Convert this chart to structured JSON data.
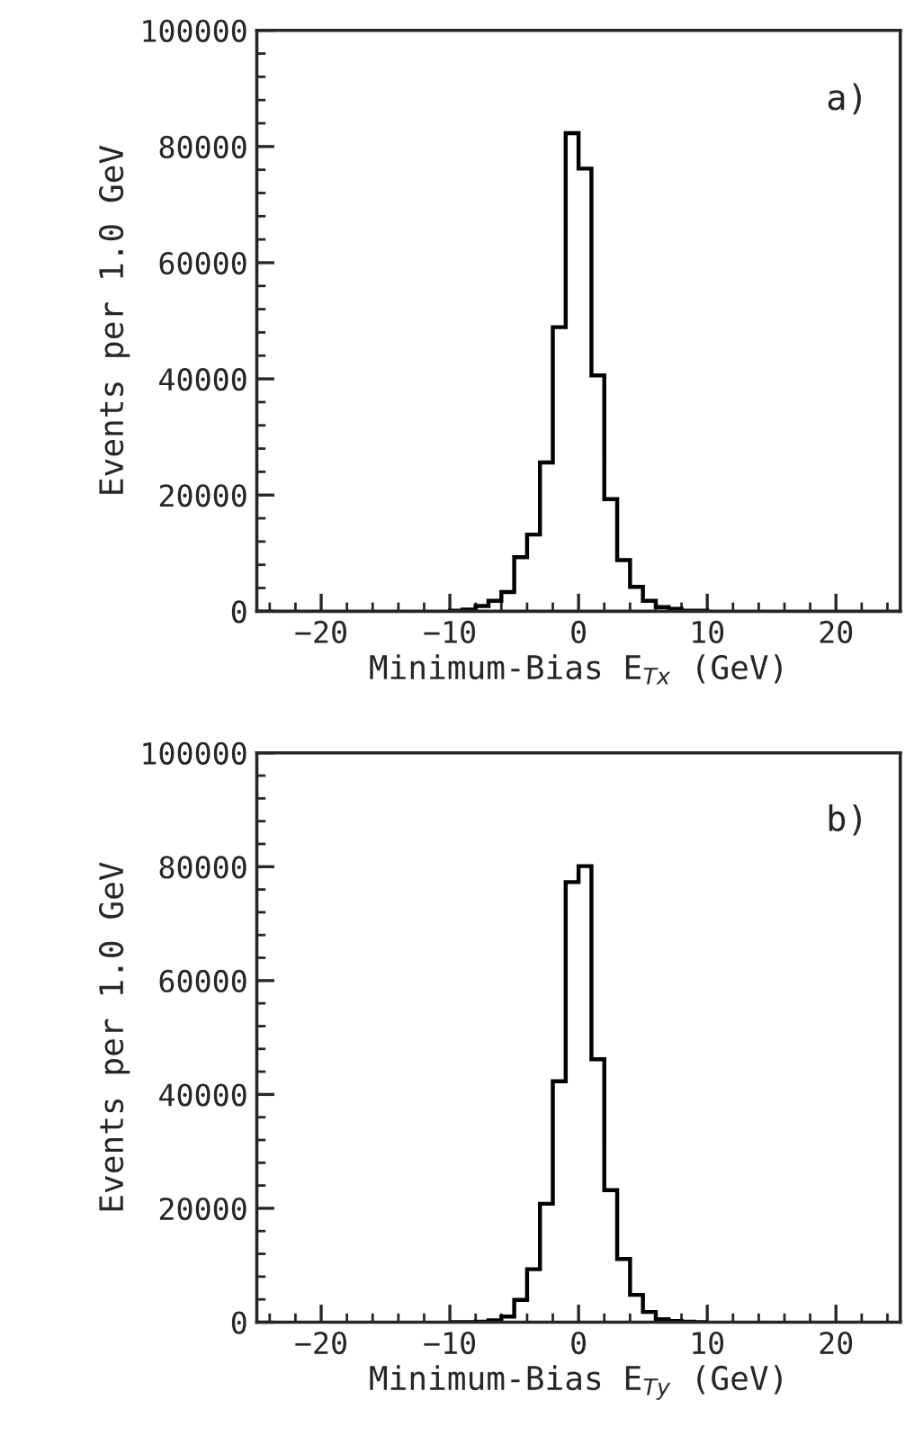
{
  "chart_data": [
    {
      "type": "histogram",
      "xlabel": "Minimum-Bias E$_{Tx}$ (GeV)",
      "ylabel": "Events per 1.0 GeV",
      "annotations": [
        "a)"
      ],
      "bins": [
        -10,
        -9,
        -8,
        -7,
        -6,
        -5,
        -4,
        -3,
        -2,
        -1,
        0,
        1,
        2,
        3,
        4,
        5,
        6,
        7,
        8,
        9,
        10
      ],
      "values": [
        100,
        300,
        900,
        1800,
        3300,
        9300,
        13200,
        25600,
        48900,
        82300,
        76200,
        40600,
        19300,
        8800,
        4200,
        1800,
        700,
        400,
        100,
        100
      ],
      "color": "#000000",
      "xlim": [
        -25,
        25
      ],
      "xticks": [
        -20,
        -10,
        0,
        10,
        20
      ],
      "ylim": [
        0,
        100000
      ],
      "yticks": [
        0,
        20000,
        40000,
        60000,
        80000,
        100000
      ],
      "grid": false,
      "legend": false
    },
    {
      "type": "histogram",
      "xlabel": "Minimum-Bias E$_{Ty}$ (GeV)",
      "ylabel": "Events per 1.0 GeV",
      "annotations": [
        "b)"
      ],
      "bins": [
        -10,
        -9,
        -8,
        -7,
        -6,
        -5,
        -4,
        -3,
        -2,
        -1,
        0,
        1,
        2,
        3,
        4,
        5,
        6,
        7,
        8,
        9,
        10
      ],
      "values": [
        0,
        0,
        100,
        300,
        1000,
        3900,
        9300,
        20800,
        42300,
        77300,
        80100,
        46200,
        23200,
        11100,
        4800,
        1800,
        500,
        200,
        100,
        0
      ],
      "color": "#000000",
      "xlim": [
        -25,
        25
      ],
      "xticks": [
        -20,
        -10,
        0,
        10,
        20
      ],
      "ylim": [
        0,
        100000
      ],
      "yticks": [
        0,
        20000,
        40000,
        60000,
        80000,
        100000
      ],
      "grid": false,
      "legend": false
    }
  ]
}
